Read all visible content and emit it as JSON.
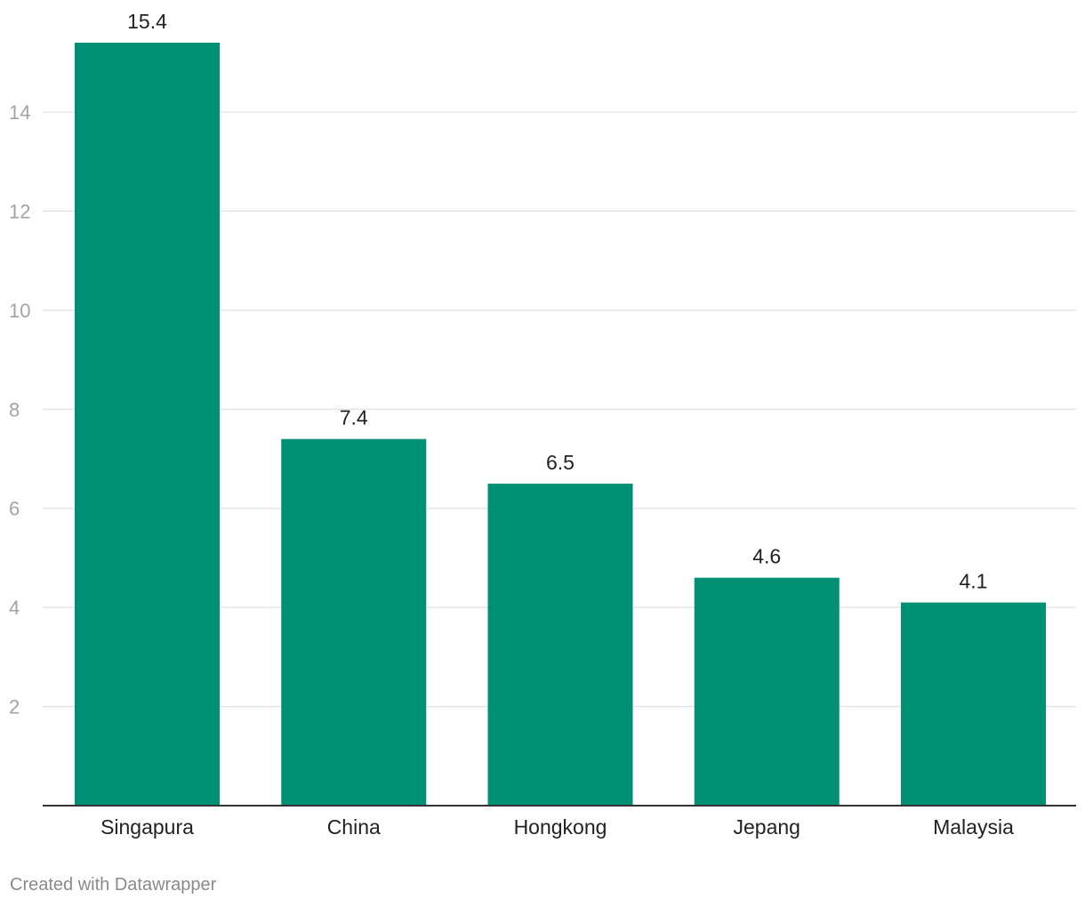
{
  "chart_data": {
    "type": "bar",
    "categories": [
      "Singapura",
      "China",
      "Hongkong",
      "Jepang",
      "Malaysia"
    ],
    "values": [
      15.4,
      7.4,
      6.5,
      4.6,
      4.1
    ],
    "value_labels": [
      "15.4",
      "7.4",
      "6.5",
      "4.6",
      "4.1"
    ],
    "title": "",
    "xlabel": "",
    "ylabel": "",
    "ylim": [
      0,
      15.4
    ],
    "yticks": [
      2,
      4,
      6,
      8,
      10,
      12,
      14
    ],
    "grid": true,
    "bar_color": "#009073"
  },
  "footer": {
    "credit": "Created with Datawrapper"
  }
}
